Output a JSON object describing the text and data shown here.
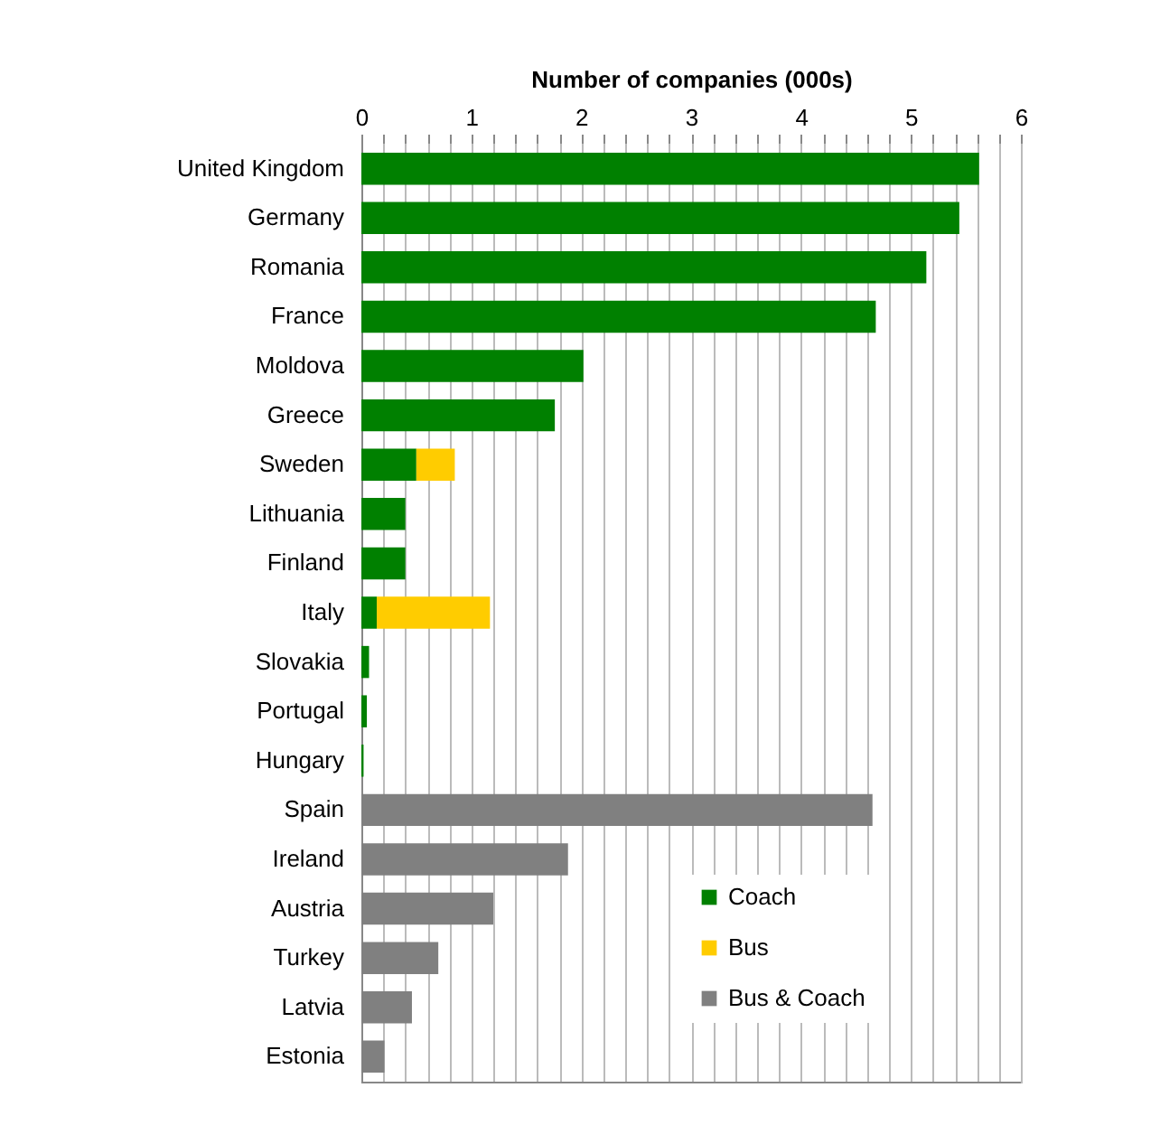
{
  "chart_data": {
    "type": "bar",
    "orientation": "horizontal",
    "stacked": true,
    "xlabel": "Number of companies (000s)",
    "categories": [
      "United Kingdom",
      "Germany",
      "Romania",
      "France",
      "Moldova",
      "Greece",
      "Sweden",
      "Lithuania",
      "Finland",
      "Italy",
      "Slovakia",
      "Portugal",
      "Hungary",
      "Spain",
      "Ireland",
      "Austria",
      "Turkey",
      "Latvia",
      "Estonia"
    ],
    "series": [
      {
        "name": "Coach",
        "color": "#008000",
        "values": [
          5.62,
          5.44,
          5.14,
          4.68,
          2.02,
          1.76,
          0.5,
          0.4,
          0.4,
          0.14,
          0.07,
          0.05,
          0.02,
          null,
          null,
          null,
          null,
          null,
          null
        ]
      },
      {
        "name": "Bus",
        "color": "#ffcc00",
        "values": [
          null,
          null,
          null,
          null,
          null,
          null,
          0.35,
          null,
          null,
          1.03,
          null,
          null,
          null,
          null,
          null,
          null,
          null,
          null,
          null
        ]
      },
      {
        "name": "Bus & Coach",
        "color": "#808080",
        "values": [
          null,
          null,
          null,
          null,
          null,
          null,
          null,
          null,
          null,
          null,
          null,
          null,
          null,
          4.65,
          1.88,
          1.2,
          0.7,
          0.46,
          0.21
        ]
      }
    ],
    "xlim": [
      0,
      6
    ],
    "xticks": [
      0,
      {
        "value": 0.2,
        "label": null
      },
      {
        "value": 0.4,
        "label": null
      },
      {
        "value": 0.6,
        "label": null
      },
      {
        "value": 0.8,
        "label": null
      },
      1,
      {
        "value": 1.2,
        "label": null
      },
      {
        "value": 1.4,
        "label": null
      },
      {
        "value": 1.6,
        "label": null
      },
      {
        "value": 1.8,
        "label": null
      },
      2,
      {
        "value": 2.2,
        "label": null
      },
      {
        "value": 2.4,
        "label": null
      },
      {
        "value": 2.6,
        "label": null
      },
      {
        "value": 2.8,
        "label": null
      },
      3,
      {
        "value": 3.2,
        "label": null
      },
      {
        "value": 3.4,
        "label": null
      },
      {
        "value": 3.6,
        "label": null
      },
      {
        "value": 3.8,
        "label": null
      },
      4,
      {
        "value": 4.2,
        "label": null
      },
      {
        "value": 4.4,
        "label": null
      },
      {
        "value": 4.6,
        "label": null
      },
      {
        "value": 4.8,
        "label": null
      },
      5,
      {
        "value": 5.2,
        "label": null
      },
      {
        "value": 5.4,
        "label": null
      },
      {
        "value": 5.6,
        "label": null
      },
      {
        "value": 5.8,
        "label": null
      },
      6
    ],
    "grid": "x",
    "legend": "bottom right"
  }
}
